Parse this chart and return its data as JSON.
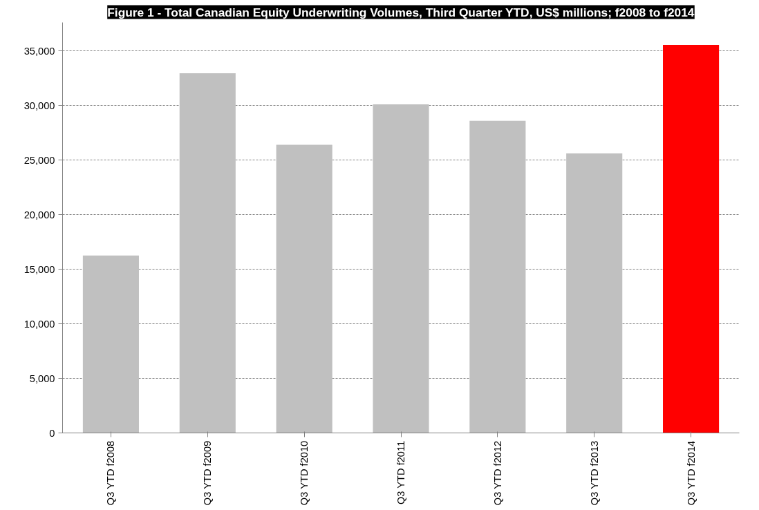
{
  "chart_data": {
    "type": "bar",
    "title": "Figure 1 - Total Canadian Equity Underwriting Volumes, Third Quarter YTD, US$ millions; f2008 to f2014",
    "categories": [
      "Q3 YTD f2008",
      "Q3 YTD f2009",
      "Q3 YTD f2010",
      "Q3 YTD f2011",
      "Q3 YTD f2012",
      "Q3 YTD f2013",
      "Q3 YTD f2014"
    ],
    "values": [
      16250,
      32950,
      26400,
      30100,
      28600,
      25600,
      35550
    ],
    "colors": [
      "#c0c0c0",
      "#c0c0c0",
      "#c0c0c0",
      "#c0c0c0",
      "#c0c0c0",
      "#c0c0c0",
      "#ff0000"
    ],
    "ylim": [
      0,
      37600
    ],
    "yticks": [
      {
        "value": 0,
        "label": "0"
      },
      {
        "value": 5000,
        "label": "5,000"
      },
      {
        "value": 10000,
        "label": "10,000"
      },
      {
        "value": 15000,
        "label": "15,000"
      },
      {
        "value": 20000,
        "label": "20,000"
      },
      {
        "value": 25000,
        "label": "25,000"
      },
      {
        "value": 30000,
        "label": "30,000"
      },
      {
        "value": 35000,
        "label": "35,000"
      }
    ],
    "grid": "y"
  }
}
